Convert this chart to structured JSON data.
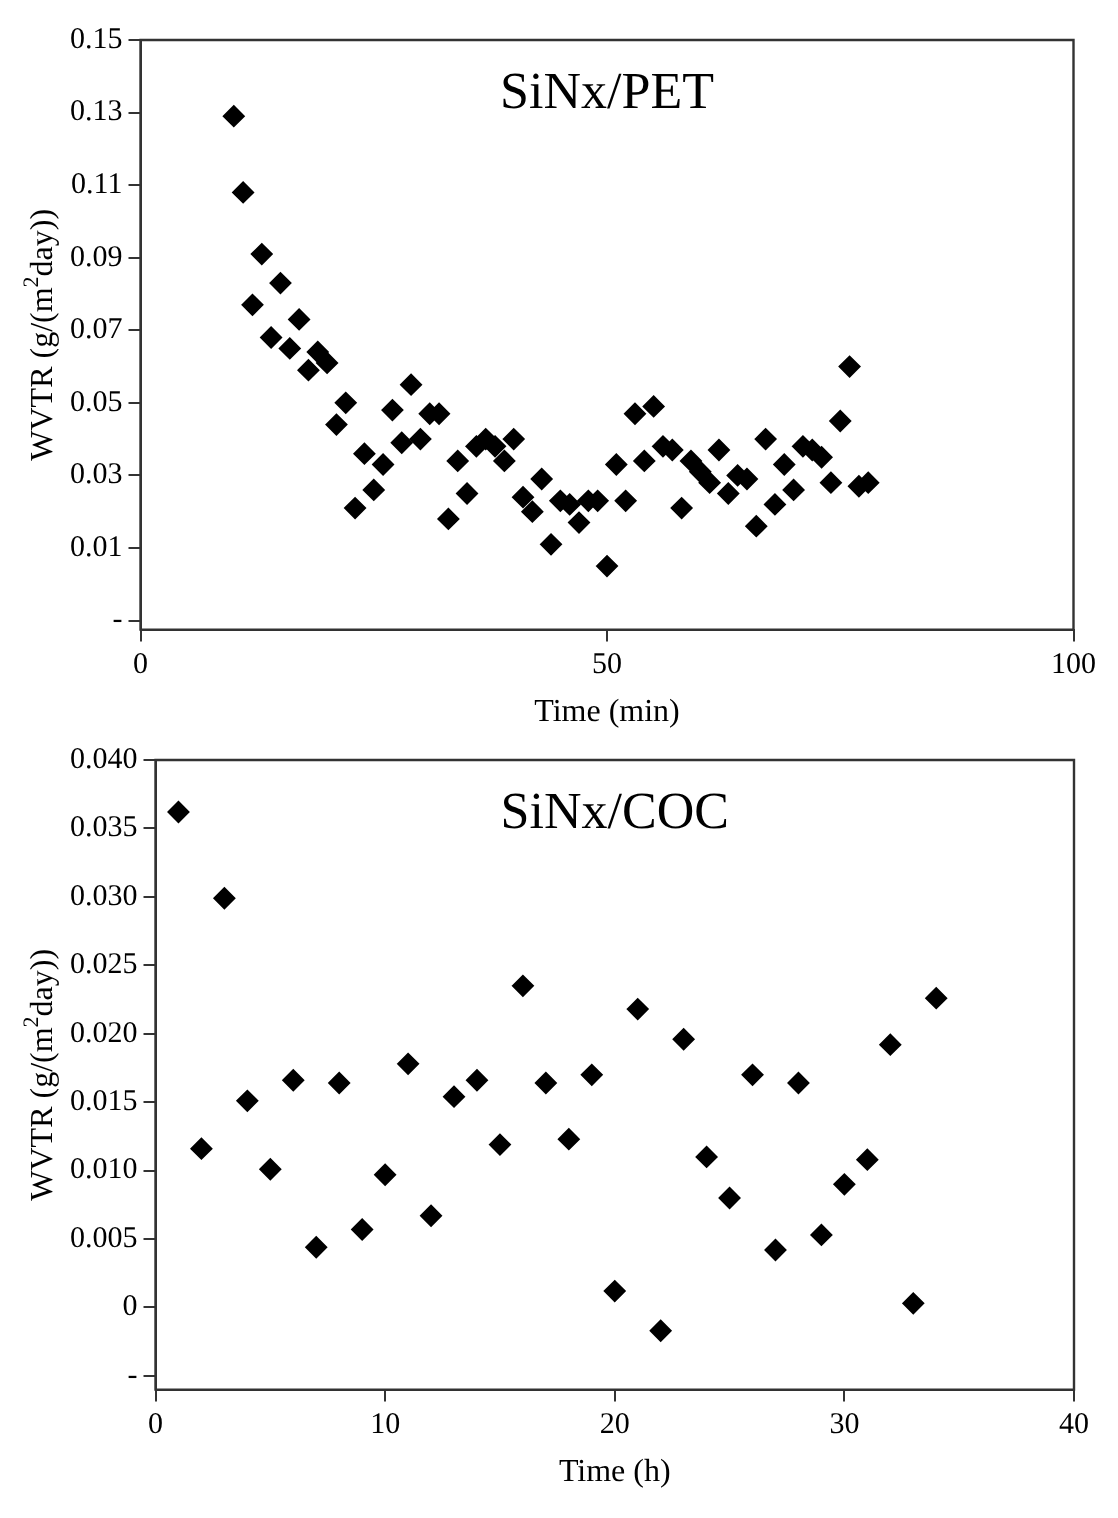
{
  "chart_data": [
    {
      "type": "scatter",
      "annotations": [
        "SiNx/PET"
      ],
      "xlabel": "Time (min)",
      "ylabel": "WVTR (g/(m$^{2}$day))",
      "marker": "diamond",
      "grid": false,
      "x": [
        10,
        11,
        12,
        13,
        14,
        15,
        16,
        17,
        18,
        19,
        20,
        21,
        22,
        23,
        24,
        25,
        26,
        27,
        28,
        29,
        30,
        31,
        32,
        33,
        34,
        35,
        36,
        37,
        38,
        39,
        40,
        41,
        42,
        43,
        44,
        45,
        46,
        47,
        48,
        49,
        50,
        51,
        52,
        53,
        54,
        55,
        56,
        57,
        58,
        59,
        60,
        61,
        62,
        63,
        64,
        65,
        66,
        67,
        68,
        69,
        70,
        71,
        72,
        73,
        74,
        75,
        76,
        77,
        78
      ],
      "series": [
        {
          "color": "#000000",
          "values": [
            0.129,
            0.108,
            0.077,
            0.091,
            0.068,
            0.083,
            0.065,
            0.073,
            0.059,
            0.064,
            0.061,
            0.044,
            0.05,
            0.021,
            0.036,
            0.026,
            0.033,
            0.048,
            0.039,
            0.055,
            0.04,
            0.047,
            0.047,
            0.018,
            0.034,
            0.025,
            0.038,
            0.04,
            0.038,
            0.034,
            0.04,
            0.024,
            0.02,
            0.029,
            0.011,
            0.023,
            0.022,
            0.017,
            0.023,
            0.023,
            0.005,
            0.033,
            0.023,
            0.047,
            0.034,
            0.049,
            0.038,
            0.037,
            0.021,
            0.034,
            0.031,
            0.028,
            0.037,
            0.025,
            0.03,
            0.029,
            0.016,
            0.04,
            0.022,
            0.033,
            0.026,
            0.038,
            0.037,
            0.035,
            0.028,
            0.045,
            0.06,
            0.027,
            0.028
          ]
        }
      ],
      "xlim": [
        0,
        100
      ],
      "xticks": [
        0,
        50,
        100
      ],
      "ylim": [
        -0.0125,
        0.15
      ],
      "yticks": [
        {
          "value": -0.01,
          "label": "-"
        },
        0.01,
        0.03,
        0.05,
        0.07,
        0.09,
        0.11,
        0.13,
        0.15
      ]
    },
    {
      "type": "scatter",
      "annotations": [
        "SiNx/COC"
      ],
      "xlabel": "Time (h)",
      "ylabel": "WVTR (g/(m$^{2}$day))",
      "marker": "diamond",
      "grid": false,
      "x": [
        1,
        2,
        3,
        4,
        5,
        6,
        7,
        8,
        9,
        10,
        11,
        12,
        13,
        14,
        15,
        16,
        17,
        18,
        19,
        20,
        21,
        22,
        23,
        24,
        25,
        26,
        27,
        28,
        29,
        30,
        31,
        32,
        33,
        34
      ],
      "series": [
        {
          "color": "#000000",
          "values": [
            0.0362,
            0.0116,
            0.0299,
            0.0151,
            0.0101,
            0.0166,
            0.0044,
            0.0164,
            0.0057,
            0.0097,
            0.0178,
            0.0067,
            0.0154,
            0.0166,
            0.0119,
            0.0235,
            0.0164,
            0.0123,
            0.017,
            0.0012,
            0.0218,
            -0.0017,
            0.0196,
            0.011,
            0.008,
            0.017,
            0.0042,
            0.0164,
            0.0053,
            0.009,
            0.0108,
            0.0192,
            0.0003,
            0.0226
          ]
        }
      ],
      "xlim": [
        0,
        40
      ],
      "xticks": [
        0,
        10,
        20,
        30,
        40
      ],
      "ylim": [
        -0.006,
        0.04
      ],
      "yticks": [
        {
          "value": -0.005,
          "label": "-"
        },
        0,
        {
          "value": 0.005,
          "label": "0.005"
        },
        {
          "value": 0.01,
          "label": "0.010"
        },
        {
          "value": 0.015,
          "label": "0.015"
        },
        {
          "value": 0.02,
          "label": "0.020"
        },
        {
          "value": 0.025,
          "label": "0.025"
        },
        {
          "value": 0.03,
          "label": "0.030"
        },
        {
          "value": 0.035,
          "label": "0.035"
        },
        {
          "value": 0.04,
          "label": "0.040"
        }
      ]
    }
  ]
}
